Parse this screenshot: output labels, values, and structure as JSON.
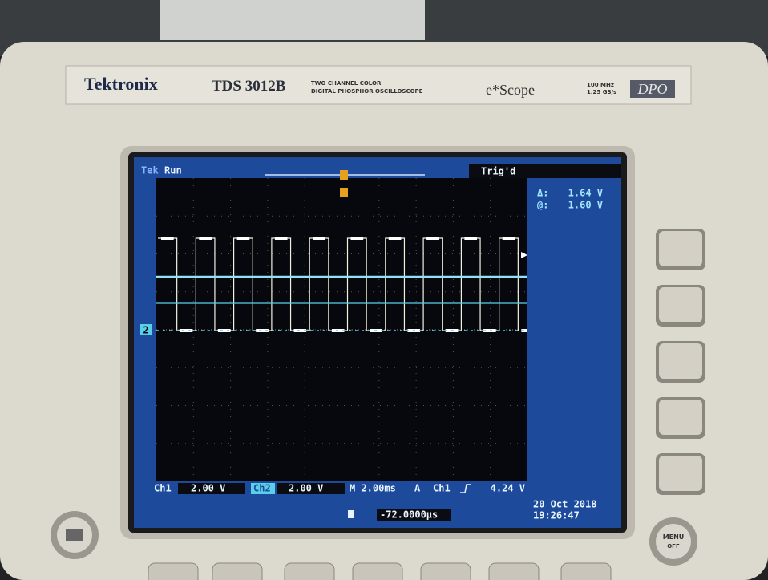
{
  "header": {
    "brand": "Tektronix",
    "model": "TDS 3012B",
    "description_1": "TWO CHANNEL COLOR",
    "description_2": "DIGITAL PHOSPHOR OSCILLOSCOPE",
    "product_line": "e*Scope",
    "spec_1": "100 MHz",
    "spec_2": "1.25 GS/s",
    "badge": "DPO"
  },
  "screen": {
    "tek": "Tek",
    "status": "Run",
    "trigger_state": "Trig'd",
    "cursor": {
      "delta_label": "Δ:",
      "delta_value": "1.64 V",
      "at_label": "@:",
      "at_value": "1.60 V"
    },
    "channel_marker": "2",
    "bottom": {
      "ch1_label": "Ch1",
      "ch1_scale": "2.00 V",
      "ch2_label": "Ch2",
      "ch2_scale": "2.00 V",
      "timebase": "M 2.00ms",
      "trigger_mode": "A",
      "trigger_source": "Ch1",
      "trigger_level": "4.24 V",
      "position": "-72.0000µs"
    },
    "date": "20 Oct  2018",
    "time": "19:26:47"
  },
  "buttons": {
    "menu": "MENU",
    "off": "OFF"
  }
}
